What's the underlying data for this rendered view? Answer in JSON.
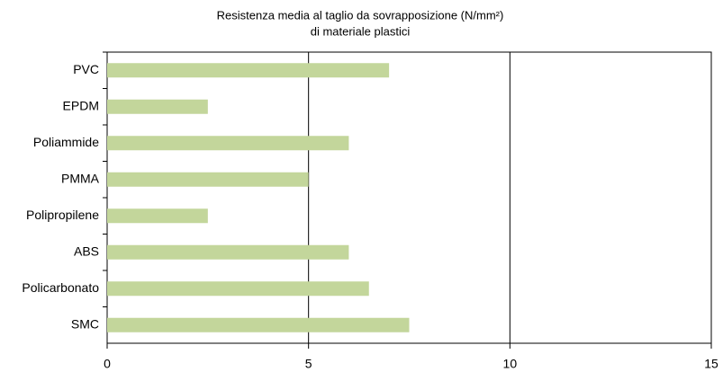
{
  "chart_data": {
    "type": "barh",
    "title": [
      "Resistenza media al taglio da sovrapposizione (N/mm²)",
      "di materiale plastici"
    ],
    "categories": [
      "PVC",
      "EPDM",
      "Poliammide",
      "PMMA",
      "Polipropilene",
      "ABS",
      "Policarbonato",
      "SMC"
    ],
    "values": [
      7,
      2.5,
      6,
      5,
      2.5,
      6,
      6.5,
      7.5
    ],
    "color": "#c3d69b",
    "xlim": [
      0,
      15
    ],
    "xticks": [
      0,
      5,
      10,
      15
    ],
    "grid": true
  }
}
